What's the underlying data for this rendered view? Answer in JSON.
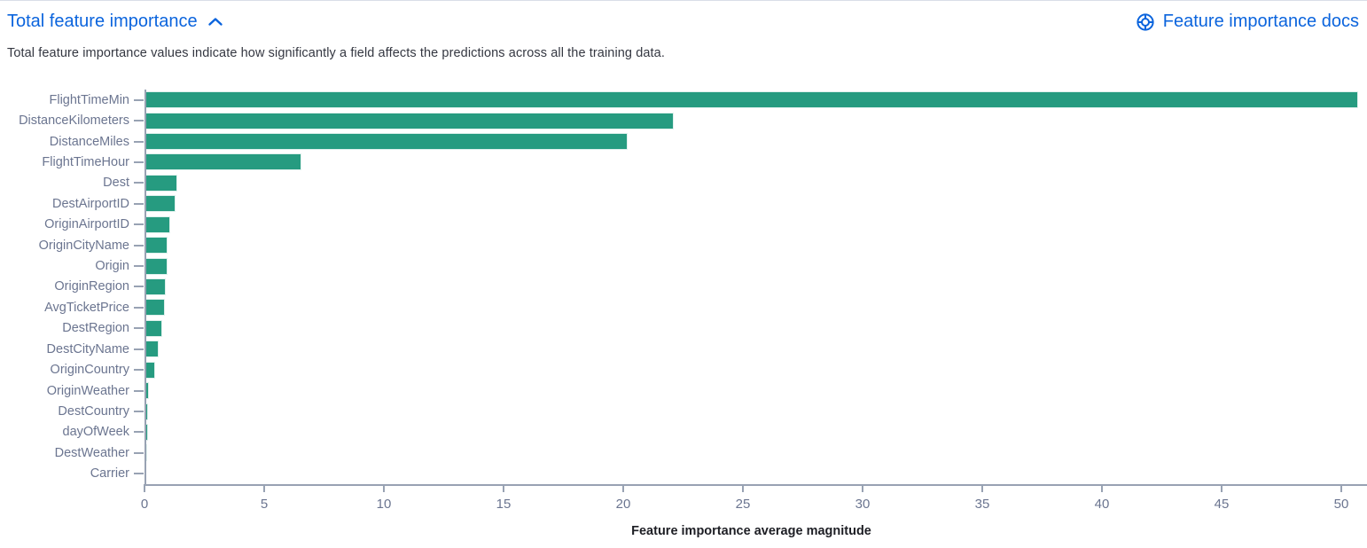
{
  "header": {
    "title": "Total feature importance",
    "collapse_icon": "chevron-up",
    "docs_link": "Feature importance docs",
    "docs_icon": "help-lifebuoy"
  },
  "description": "Total feature importance values indicate how significantly a field affects the predictions across all the training data.",
  "colors": {
    "link_blue": "#0B64DD",
    "bar_teal": "#269B80",
    "axis_line": "#98A2B3",
    "axis_label": "#6B7590",
    "body_text": "#343741",
    "top_border": "#D9DEE8"
  },
  "chart_data": {
    "type": "bar",
    "orientation": "horizontal",
    "title": "",
    "xlabel": "Feature importance average magnitude",
    "ylabel": "",
    "categories": [
      "FlightTimeMin",
      "DistanceKilometers",
      "DistanceMiles",
      "FlightTimeHour",
      "Dest",
      "DestAirportID",
      "OriginAirportID",
      "OriginCityName",
      "Origin",
      "OriginRegion",
      "AvgTicketPrice",
      "DestRegion",
      "DestCityName",
      "OriginCountry",
      "OriginWeather",
      "DestCountry",
      "dayOfWeek",
      "DestWeather",
      "Carrier"
    ],
    "values": [
      50.7,
      22.1,
      20.2,
      6.55,
      1.37,
      1.31,
      1.09,
      0.98,
      0.97,
      0.89,
      0.84,
      0.75,
      0.58,
      0.45,
      0.17,
      0.16,
      0.15,
      0.11,
      0.05
    ],
    "x_ticks": [
      0,
      5,
      10,
      15,
      20,
      25,
      30,
      35,
      40,
      45,
      50
    ],
    "xlim": [
      0,
      51
    ],
    "grid": false,
    "legend": "none"
  }
}
